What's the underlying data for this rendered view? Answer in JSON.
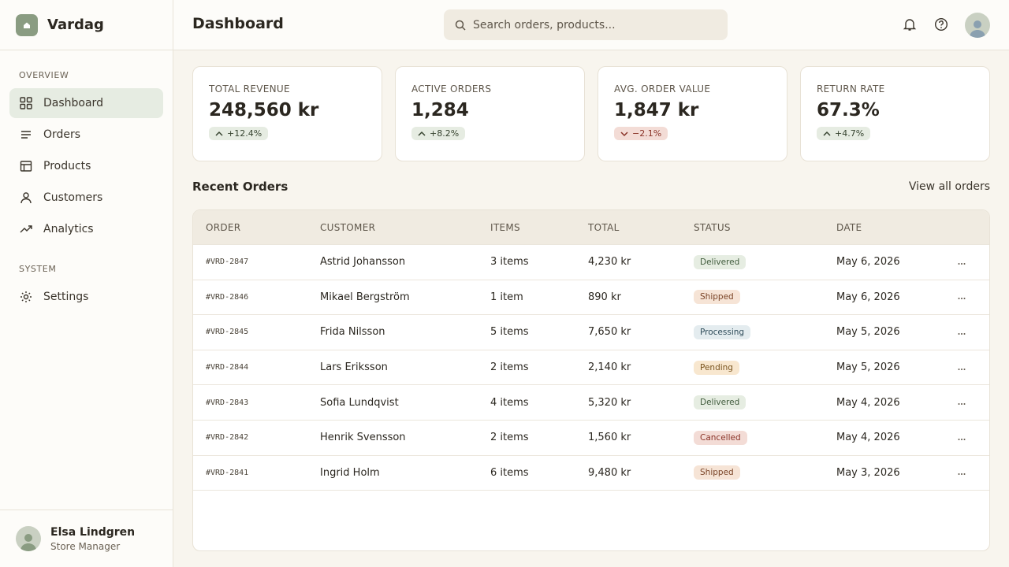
{
  "sidebar": {
    "brand": "Vardag",
    "sections": [
      {
        "heading": "OVERVIEW",
        "items": [
          "Dashboard",
          "Orders",
          "Products",
          "Customers",
          "Analytics"
        ]
      },
      {
        "heading": "SYSTEM",
        "items": [
          "Settings"
        ]
      }
    ],
    "user": {
      "name": "Elsa Lindgren",
      "role": "Store Manager"
    }
  },
  "header": {
    "title": "Dashboard",
    "search_placeholder": "Search orders, products..."
  },
  "kpis": [
    {
      "label": "TOTAL REVENUE",
      "value": "248,560 kr",
      "change": "+12.4%"
    },
    {
      "label": "ACTIVE ORDERS",
      "value": "1,284",
      "change": "+8.2%"
    },
    {
      "label": "AVG. ORDER VALUE",
      "value": "1,847 kr",
      "change": "−2.1%"
    },
    {
      "label": "RETURN RATE",
      "value": "67.3%",
      "change": "+4.7%"
    }
  ],
  "recent_orders": {
    "title": "Recent Orders",
    "link": "View all orders",
    "columns": [
      "ORDER",
      "CUSTOMER",
      "ITEMS",
      "TOTAL",
      "STATUS",
      "DATE"
    ],
    "rows": [
      [
        "#VRD-2847",
        "Astrid Johansson",
        "3 items",
        "4,230 kr",
        "Delivered",
        "May 6, 2026"
      ],
      [
        "#VRD-2846",
        "Mikael Bergström",
        "1 item",
        "890 kr",
        "Shipped",
        "May 6, 2026"
      ],
      [
        "#VRD-2845",
        "Frida Nilsson",
        "5 items",
        "7,650 kr",
        "Processing",
        "May 5, 2026"
      ],
      [
        "#VRD-2844",
        "Lars Eriksson",
        "2 items",
        "2,140 kr",
        "Pending",
        "May 5, 2026"
      ],
      [
        "#VRD-2843",
        "Sofia Lundqvist",
        "4 items",
        "5,320 kr",
        "Delivered",
        "May 4, 2026"
      ],
      [
        "#VRD-2842",
        "Henrik Svensson",
        "2 items",
        "1,560 kr",
        "Cancelled",
        "May 4, 2026"
      ],
      [
        "#VRD-2841",
        "Ingrid Holm",
        "6 items",
        "9,480 kr",
        "Shipped",
        "May 3, 2026"
      ]
    ],
    "status_colors": {
      "Delivered": [
        "#e6ede2",
        "#3f5a3b"
      ],
      "Shipped": [
        "#f6e4d6",
        "#7a4427"
      ],
      "Processing": [
        "#e4ecef",
        "#2f4c5a"
      ],
      "Pending": [
        "#f8e7cf",
        "#7a5520"
      ],
      "Cancelled": [
        "#f3dcd6",
        "#8a3328"
      ]
    }
  }
}
